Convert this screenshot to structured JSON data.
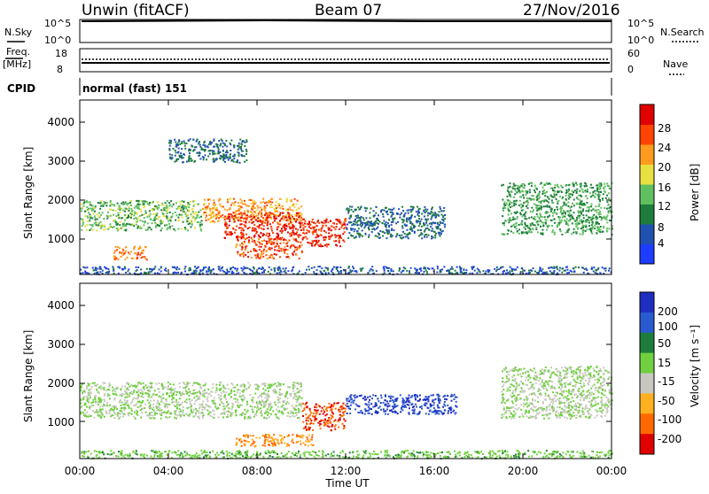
{
  "header": {
    "station": "Unwin (fitACF)",
    "beam": "Beam 07",
    "date": "27/Nov/2016"
  },
  "nsky_panel": {
    "label": "N.Sky",
    "right_label": "N.Search",
    "ticks_left": [
      "10^5",
      "10^0"
    ],
    "ticks_right": [
      "10^5",
      "10^0"
    ]
  },
  "freq_panel": {
    "label_line1": "Freq.",
    "label_line2": "[MHz]",
    "ticks_left": [
      "18",
      "8"
    ],
    "ticks_right": [
      "60",
      "0"
    ],
    "right_label": "Nave"
  },
  "cpid_panel": {
    "label": "CPID",
    "text": "normal (fast) 151"
  },
  "power_panel": {
    "ylabel": "Slant Range [km]",
    "yticks": [
      "1000",
      "2000",
      "3000",
      "4000"
    ],
    "colorbar_label": "Power [dB]",
    "colorbar_ticks": [
      "4",
      "8",
      "12",
      "16",
      "20",
      "24",
      "28"
    ]
  },
  "velocity_panel": {
    "ylabel": "Slant Range [km]",
    "yticks": [
      "1000",
      "2000",
      "3000",
      "4000"
    ],
    "colorbar_label": "Velocity [m s⁻¹]",
    "colorbar_ticks": [
      "200",
      "100",
      "50",
      "15",
      "-15",
      "-50",
      "-100",
      "-200"
    ]
  },
  "xaxis": {
    "label": "Time UT",
    "ticks": [
      "00:00",
      "04:00",
      "08:00",
      "12:00",
      "16:00",
      "20:00",
      "00:00"
    ]
  },
  "chart_data": [
    {
      "type": "heatmap",
      "title": "Power [dB]",
      "xlabel": "Time UT",
      "ylabel": "Slant Range [km]",
      "xlim_hours": [
        0,
        24
      ],
      "ylim_km": [
        180,
        4550
      ],
      "color_scale": [
        "#1e3cff",
        "#2050b0",
        "#1e7c3c",
        "#60c060",
        "#e8e040",
        "#ff9a20",
        "#ff4400",
        "#e00000"
      ],
      "color_ticks": [
        4,
        8,
        12,
        16,
        20,
        24,
        28
      ],
      "echo_regions": [
        {
          "t_start": 0.0,
          "t_end": 5.5,
          "r_low": 1300,
          "r_high": 2050,
          "power_db": 14
        },
        {
          "t_start": 1.5,
          "t_end": 3.0,
          "r_low": 550,
          "r_high": 900,
          "power_db": 24
        },
        {
          "t_start": 5.5,
          "t_end": 10.0,
          "r_low": 1500,
          "r_high": 2100,
          "power_db": 22
        },
        {
          "t_start": 6.5,
          "t_end": 10.0,
          "r_low": 1100,
          "r_high": 1750,
          "power_db": 28
        },
        {
          "t_start": 7.0,
          "t_end": 10.0,
          "r_low": 600,
          "r_high": 1100,
          "power_db": 26
        },
        {
          "t_start": 10.0,
          "t_end": 12.0,
          "r_low": 900,
          "r_high": 1600,
          "power_db": 28
        },
        {
          "t_start": 12.0,
          "t_end": 16.5,
          "r_low": 1100,
          "r_high": 1900,
          "power_db": 8
        },
        {
          "t_start": 4.0,
          "t_end": 7.5,
          "r_low": 3000,
          "r_high": 3600,
          "power_db": 8
        },
        {
          "t_start": 19.0,
          "t_end": 24.0,
          "r_low": 1200,
          "r_high": 2500,
          "power_db": 12
        },
        {
          "t_start": 0.0,
          "t_end": 24.0,
          "r_low": 200,
          "r_high": 400,
          "power_db": 6
        }
      ]
    },
    {
      "type": "heatmap",
      "title": "Velocity [m s⁻¹]",
      "xlabel": "Time UT",
      "ylabel": "Slant Range [km]",
      "xlim_hours": [
        0,
        24
      ],
      "ylim_km": [
        180,
        4550
      ],
      "color_scale": [
        "#1e2ec0",
        "#2a5ad0",
        "#1e7c3c",
        "#70d040",
        "#c8c8c0",
        "#ffb020",
        "#ff6a00",
        "#e00000"
      ],
      "color_ticks": [
        200,
        100,
        50,
        15,
        -15,
        -50,
        -100,
        -200
      ],
      "echo_regions": [
        {
          "t_start": 0.0,
          "t_end": 10.0,
          "r_low": 1200,
          "r_high": 2100,
          "velocity": 0
        },
        {
          "t_start": 7.0,
          "t_end": 10.5,
          "r_low": 500,
          "r_high": 800,
          "velocity": -80
        },
        {
          "t_start": 10.0,
          "t_end": 12.0,
          "r_low": 900,
          "r_high": 1600,
          "velocity": -150
        },
        {
          "t_start": 12.0,
          "t_end": 17.0,
          "r_low": 1300,
          "r_high": 1800,
          "velocity": 150
        },
        {
          "t_start": 19.0,
          "t_end": 24.0,
          "r_low": 1200,
          "r_high": 2500,
          "velocity": 0
        },
        {
          "t_start": 0.0,
          "t_end": 24.0,
          "r_low": 200,
          "r_high": 400,
          "velocity": 20
        }
      ]
    }
  ]
}
